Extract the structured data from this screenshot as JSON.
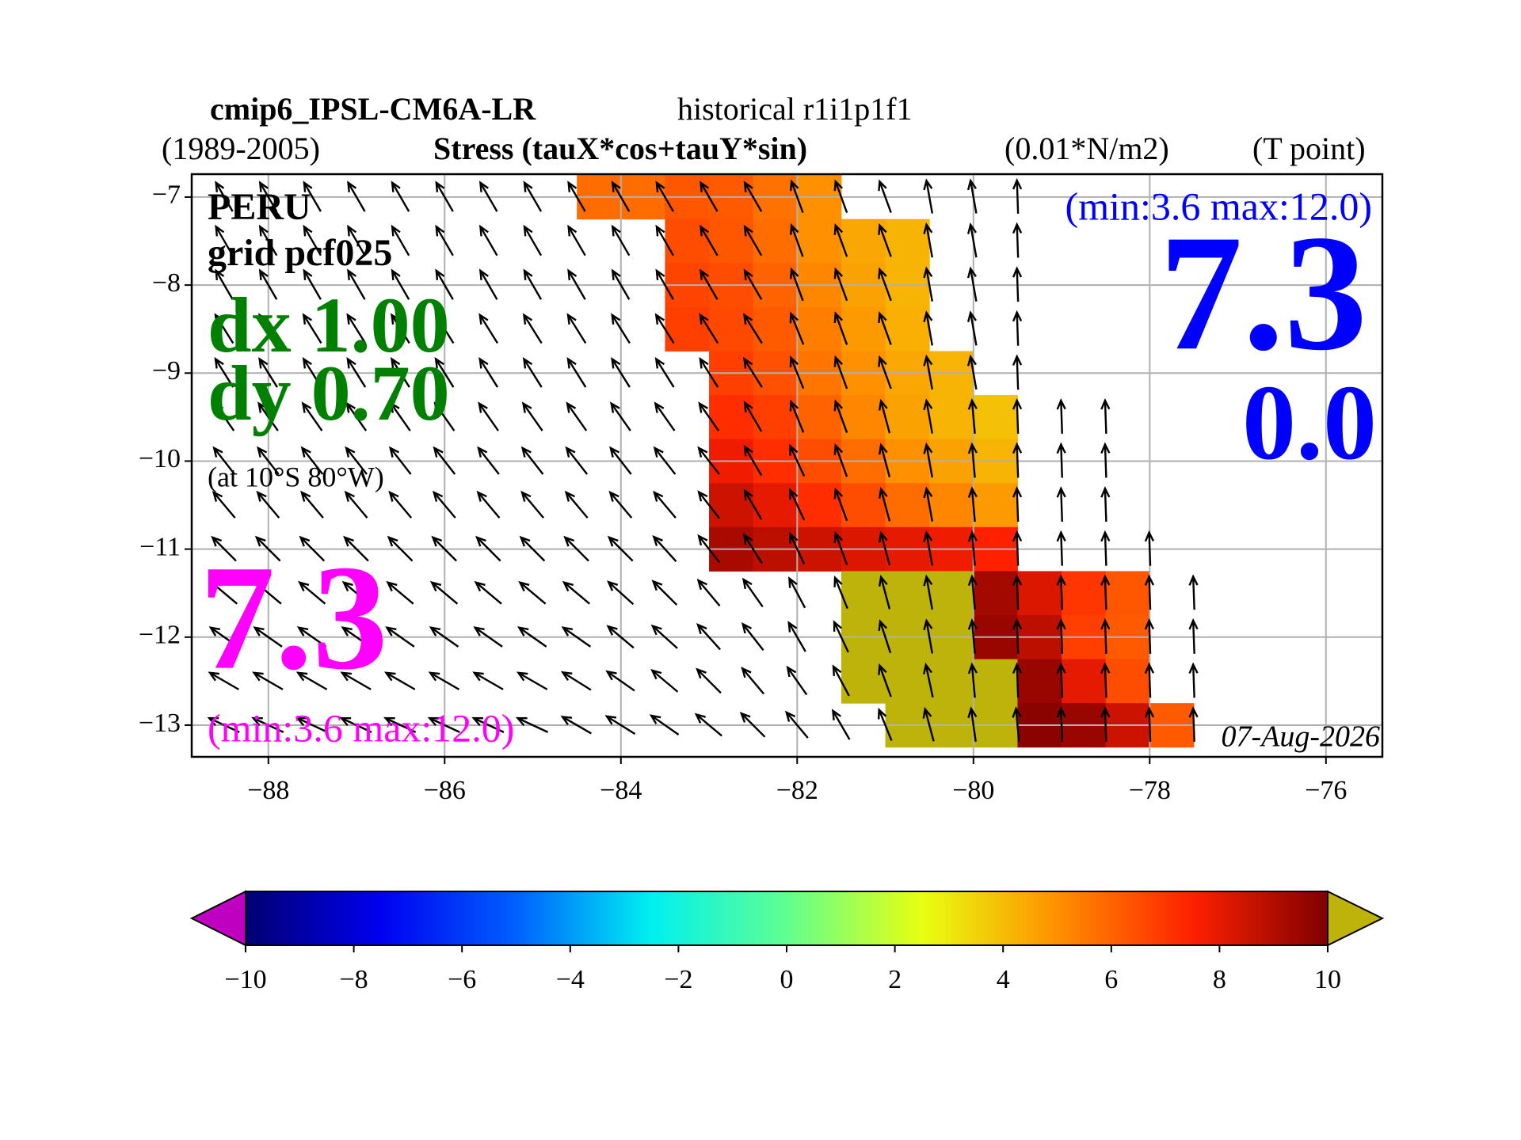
{
  "chart_data": {
    "type": "map",
    "title": "cmip6_IPSL-CM6A-LR",
    "subtitle": "historical r1i1p1f1",
    "period": "(1989-2005)",
    "variable": "Stress (tauX*cos+tauY*sin)",
    "units": "(0.01*N/m2)",
    "grid_point": "(T point)",
    "annotations": {
      "region": "PERU",
      "grid": "grid pcf025",
      "dx": "dx 1.00",
      "dy": "dy 0.70",
      "location": "(at 10°S 80°W)",
      "left_value": "7.3",
      "left_range": "(min:3.6 max:12.0)",
      "right_range": "(min:3.6 max:12.0)",
      "right_value": "7.3",
      "right_value2": "0.0",
      "date": "07-Aug-2026",
      "info_color": "#000000",
      "step_color": "#008000",
      "left_color": "#ff00ff",
      "right_color": "#0000ff"
    },
    "xlim": [
      -88.87,
      -75.36
    ],
    "ylim": [
      -13.36,
      -6.74
    ],
    "xticks": [
      {
        "value": -88,
        "label": "−88"
      },
      {
        "value": -86,
        "label": "−86"
      },
      {
        "value": -84,
        "label": "−84"
      },
      {
        "value": -82,
        "label": "−82"
      },
      {
        "value": -80,
        "label": "−80"
      },
      {
        "value": -78,
        "label": "−78"
      },
      {
        "value": -76,
        "label": "−76"
      }
    ],
    "yticks": [
      {
        "value": -7,
        "label": "−7"
      },
      {
        "value": -8,
        "label": "−8"
      },
      {
        "value": -9,
        "label": "−9"
      },
      {
        "value": -10,
        "label": "−10"
      },
      {
        "value": -11,
        "label": "−11"
      },
      {
        "value": -12,
        "label": "−12"
      },
      {
        "value": -13,
        "label": "−13"
      }
    ],
    "grid": true,
    "field": {
      "x": [
        -84.25,
        -83.75,
        -83.25,
        -82.75,
        -82.25,
        -81.75,
        -81.25,
        -80.75,
        -80.25,
        -79.75,
        -79.25,
        -78.75,
        -78.25,
        -77.75
      ],
      "y": [
        -7,
        -7.5,
        -8,
        -8.5,
        -9,
        -9.5,
        -10,
        -10.5,
        -11,
        -11.5,
        -12,
        -12.5,
        -13
      ],
      "values": [
        [
          5.8,
          5.8,
          6.3,
          6.2,
          5.7,
          5.0,
          null,
          null,
          null,
          null,
          null,
          null,
          null,
          null
        ],
        [
          null,
          null,
          6.5,
          6.3,
          5.8,
          5.0,
          4.5,
          4.2,
          null,
          null,
          null,
          null,
          null,
          null
        ],
        [
          null,
          null,
          6.7,
          6.5,
          6.0,
          5.2,
          4.6,
          4.2,
          null,
          null,
          null,
          null,
          null,
          null
        ],
        [
          null,
          null,
          6.8,
          6.6,
          6.2,
          5.4,
          4.8,
          4.3,
          null,
          null,
          null,
          null,
          null,
          null
        ],
        [
          null,
          null,
          null,
          6.8,
          6.4,
          5.6,
          5.0,
          4.5,
          4.2,
          null,
          null,
          null,
          null,
          null
        ],
        [
          null,
          null,
          null,
          7.2,
          6.8,
          6.0,
          5.2,
          4.6,
          4.2,
          3.9,
          null,
          null,
          null,
          null
        ],
        [
          null,
          null,
          null,
          7.8,
          7.2,
          6.5,
          5.8,
          5.0,
          4.6,
          4.2,
          null,
          null,
          null,
          null
        ],
        [
          null,
          null,
          null,
          8.5,
          8.0,
          7.2,
          6.5,
          5.8,
          5.2,
          4.8,
          null,
          null,
          null,
          null
        ],
        [
          null,
          null,
          null,
          9.2,
          8.8,
          8.5,
          8.2,
          8.0,
          7.8,
          7.5,
          null,
          null,
          null,
          null
        ],
        [
          null,
          null,
          null,
          null,
          null,
          null,
          12.0,
          12.0,
          12.0,
          9.3,
          8.2,
          7.0,
          6.3,
          null
        ],
        [
          null,
          null,
          null,
          null,
          null,
          null,
          12.0,
          12.0,
          12.0,
          9.5,
          8.8,
          6.8,
          6.2,
          null
        ],
        [
          null,
          null,
          null,
          null,
          null,
          null,
          12.0,
          12.0,
          12.0,
          12.0,
          9.5,
          8.0,
          6.5,
          null
        ],
        [
          null,
          null,
          null,
          null,
          null,
          null,
          null,
          12.0,
          12.0,
          12.0,
          9.8,
          9.5,
          8.5,
          6.2
        ]
      ]
    },
    "vectors": {
      "x": [
        -88.5,
        -88,
        -87.5,
        -87,
        -86.5,
        -86,
        -85.5,
        -85,
        -84.5,
        -84,
        -83.5,
        -83,
        -82.5,
        -82,
        -81.5,
        -81,
        -80.5,
        -80,
        -79.5,
        -79,
        -78.5,
        -78,
        -77.5
      ],
      "y": [
        -7,
        -7.5,
        -8,
        -8.5,
        -9,
        -9.5,
        -10,
        -10.5,
        -11,
        -11.5,
        -12,
        -12.5,
        -13
      ],
      "angles": [
        [
          120,
          120,
          120,
          120,
          120,
          120,
          120,
          120,
          120,
          120,
          120,
          120,
          120,
          110,
          110,
          110,
          100,
          100,
          92,
          null,
          null,
          null,
          null
        ],
        [
          120,
          120,
          120,
          120,
          120,
          120,
          120,
          120,
          120,
          120,
          120,
          120,
          120,
          110,
          110,
          110,
          100,
          100,
          92,
          null,
          null,
          null,
          null
        ],
        [
          120,
          120,
          120,
          120,
          120,
          120,
          120,
          120,
          120,
          120,
          120,
          120,
          120,
          110,
          110,
          110,
          100,
          100,
          92,
          null,
          null,
          null,
          null
        ],
        [
          122,
          122,
          122,
          122,
          122,
          122,
          122,
          122,
          122,
          122,
          122,
          122,
          122,
          112,
          110,
          110,
          100,
          100,
          92,
          null,
          null,
          null,
          null
        ],
        [
          122,
          122,
          122,
          122,
          122,
          122,
          122,
          122,
          122,
          122,
          122,
          122,
          122,
          112,
          110,
          110,
          100,
          100,
          92,
          null,
          null,
          null,
          null
        ],
        [
          125,
          125,
          125,
          125,
          125,
          125,
          125,
          125,
          125,
          125,
          125,
          125,
          120,
          112,
          110,
          105,
          100,
          95,
          92,
          92,
          92,
          null,
          null
        ],
        [
          128,
          128,
          128,
          128,
          128,
          128,
          128,
          128,
          128,
          128,
          128,
          128,
          120,
          115,
          110,
          105,
          100,
          95,
          92,
          92,
          92,
          null,
          null
        ],
        [
          130,
          130,
          130,
          130,
          130,
          130,
          130,
          130,
          130,
          130,
          130,
          128,
          120,
          115,
          110,
          105,
          100,
          95,
          92,
          92,
          92,
          null,
          null
        ],
        [
          135,
          135,
          135,
          135,
          135,
          135,
          135,
          135,
          135,
          135,
          132,
          128,
          122,
          115,
          110,
          105,
          100,
          95,
          92,
          92,
          92,
          92,
          null
        ],
        [
          140,
          140,
          140,
          140,
          140,
          140,
          140,
          140,
          140,
          138,
          135,
          130,
          125,
          118,
          112,
          105,
          100,
          95,
          92,
          92,
          92,
          92,
          92
        ],
        [
          145,
          145,
          145,
          145,
          145,
          145,
          145,
          145,
          145,
          140,
          138,
          132,
          128,
          120,
          115,
          108,
          100,
          95,
          92,
          92,
          92,
          92,
          92
        ],
        [
          150,
          150,
          150,
          150,
          150,
          150,
          150,
          150,
          148,
          145,
          140,
          135,
          130,
          125,
          118,
          110,
          102,
          95,
          92,
          92,
          92,
          92,
          92
        ],
        [
          155,
          155,
          155,
          155,
          155,
          155,
          155,
          155,
          150,
          148,
          145,
          140,
          135,
          130,
          120,
          112,
          105,
          98,
          95,
          92,
          92,
          92,
          92
        ]
      ],
      "color": "#000000"
    },
    "colorbar": {
      "lim": [
        -10,
        10
      ],
      "ticks": [
        {
          "value": -10,
          "label": "−10"
        },
        {
          "value": -8,
          "label": "−8"
        },
        {
          "value": -6,
          "label": "−6"
        },
        {
          "value": -4,
          "label": "−4"
        },
        {
          "value": -2,
          "label": "−2"
        },
        0,
        2,
        4,
        6,
        8,
        10
      ],
      "colors": [
        "#000070",
        "#0000f0",
        "#0060ff",
        "#00f0f0",
        "#60ff90",
        "#e8ff10",
        "#ff9000",
        "#ff2000",
        "#800000"
      ],
      "under": "#c000c0",
      "over": "#bdb30a"
    }
  }
}
